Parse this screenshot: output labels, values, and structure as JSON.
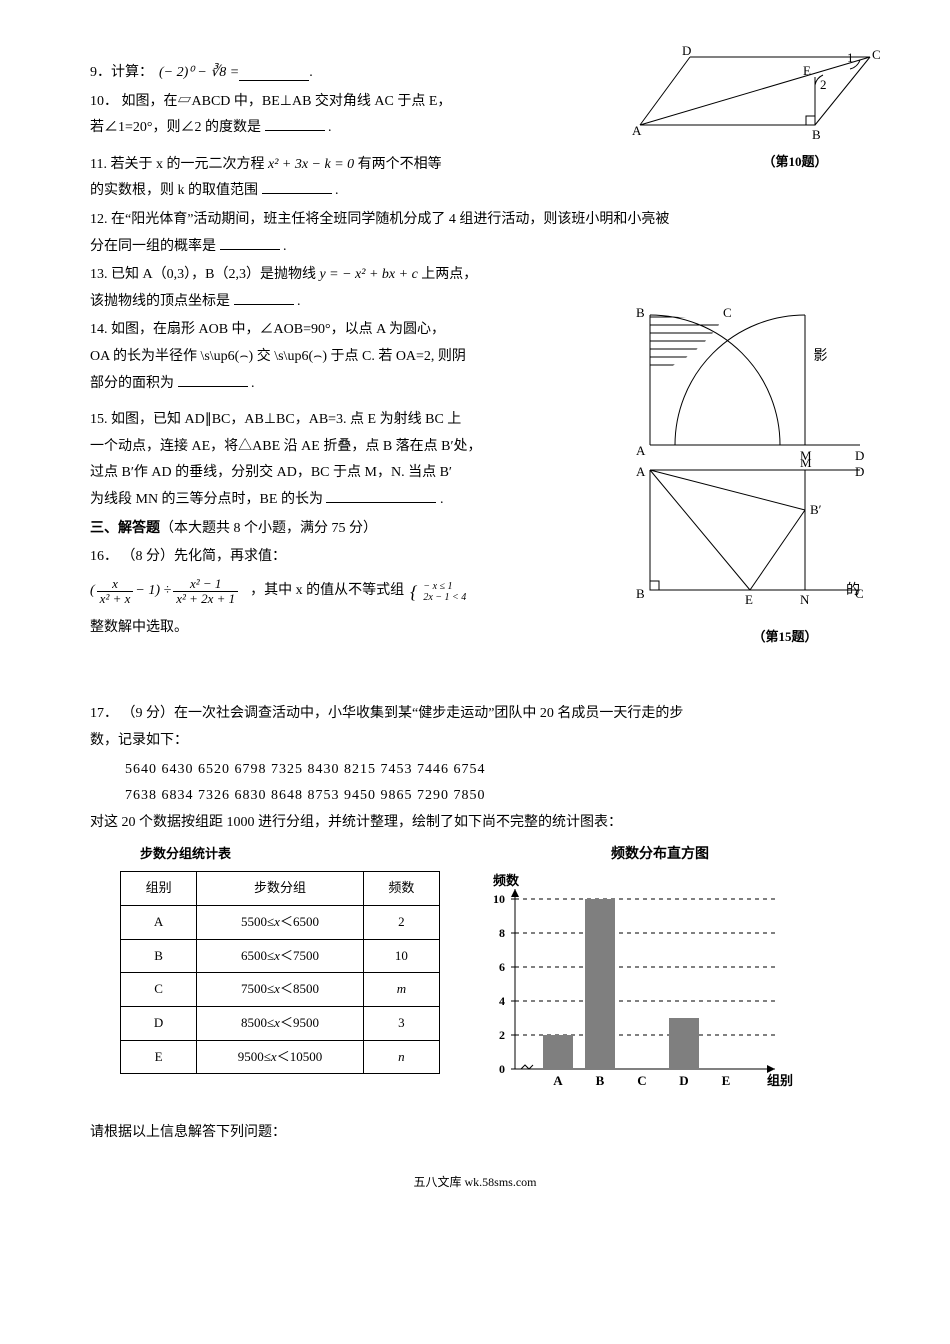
{
  "q9": {
    "num": "9．",
    "text_a": "计算：",
    "expr": "(− 2)⁰ − ∛8 =",
    "tail": "."
  },
  "q10": {
    "num": "10．",
    "l1": "如图，在▱ABCD 中，BE⊥AB 交对角线 AC 于点 E，",
    "l2": "若∠1=20°，则∠2 的度数是",
    "tail": "."
  },
  "fig10": {
    "caption": "（第10题）",
    "labels": {
      "A": "A",
      "B": "B",
      "C": "C",
      "D": "D",
      "E": "E",
      "ang1": "1",
      "ang2": "2"
    }
  },
  "q11": {
    "num": "11.",
    "l1a": "若关于 x 的一元二次方程",
    "expr": " x² + 3x − k = 0",
    "l1b": "有两个不相等",
    "l2a": "的实数根，则 k 的取值范围",
    "tail": "."
  },
  "q12": {
    "num": "12.",
    "l1": "在“阳光体育”活动期间，班主任将全班同学随机分成了 4 组进行活动，则该班小明和小亮被",
    "l2": "分在同一组的概率是",
    "tail": "."
  },
  "q13": {
    "num": "13.",
    "l1a": "已知 A（0,3），B（2,3）是抛物线",
    "expr": " y = − x² + bx + c ",
    "l1b": "上两点，",
    "l2": "该抛物线的顶点坐标是",
    "tail": "."
  },
  "q14": {
    "num": "14.",
    "l1": "如图，在扇形 AOB 中，∠AOB=90°，以点 A 为圆心，",
    "l2a": "OA 的长为半径作 \\s\\up6(⌢) 交 \\s\\up6(⌢) 于点 C.  若 OA=2, 则阴",
    "l2b": "影",
    "l3": "部分的面积为",
    "tail": "."
  },
  "fig14": {
    "labels": {
      "A": "A",
      "B": "B",
      "C": "C",
      "M": "M",
      "D": "D"
    }
  },
  "q15": {
    "num": "15.",
    "l1": "如图，已知 AD∥BC，AB⊥BC，AB=3. 点 E 为射线 BC 上",
    "l2": "一个动点，连接 AE，将△ABE 沿 AE 折叠，点 B 落在点 B′处，",
    "l3": "过点 B′作 AD 的垂线，分别交 AD，BC 于点 M，N. 当点 B′",
    "l4": "为线段 MN 的三等分点时，BE 的长为",
    "tail": "."
  },
  "fig15": {
    "caption": "（第15题）",
    "labels": {
      "A": "A",
      "B": "B",
      "C": "C",
      "D": "D",
      "M": "M",
      "N": "N",
      "E": "E",
      "Bp": "B′"
    }
  },
  "sec3": "三、解答题（本大题共 8 个小题，满分 75 分）",
  "q16": {
    "num": "16．",
    "l1": "（8 分）先化简，再求值：",
    "mid": "，其中 x 的值从不等式组",
    "sys1": "− x ≤ 1",
    "sys2": "2x − 1 < 4",
    "l2": "的",
    "l3": "整数解中选取。"
  },
  "q17": {
    "num": "17．",
    "l1": "（9 分）在一次社会调查活动中，小华收集到某“健步走运动”团队中 20 名成员一天行走的步",
    "l2": "数，记录如下：",
    "data_row1": [
      "5640",
      "6430",
      "6520",
      "6798",
      "7325",
      "8430",
      "8215",
      "7453",
      "7446",
      "6754"
    ],
    "data_row2": [
      "7638",
      "6834",
      "7326",
      "6830",
      "8648",
      "8753",
      "9450",
      "9865",
      "7290",
      "7850"
    ],
    "l3": "对这 20 个数据按组距 1000 进行分组，并统计整理，绘制了如下尚不完整的统计图表：",
    "l4": "请根据以上信息解答下列问题："
  },
  "freq_table": {
    "title": "步数分组统计表",
    "headers": [
      "组别",
      "步数分组",
      "频数"
    ],
    "rows": [
      [
        "A",
        "5500≤x＜6500",
        "2"
      ],
      [
        "B",
        "6500≤x＜7500",
        "10"
      ],
      [
        "C",
        "7500≤x＜8500",
        "m"
      ],
      [
        "D",
        "8500≤x＜9500",
        "3"
      ],
      [
        "E",
        "9500≤x＜10500",
        "n"
      ]
    ],
    "col_widths": [
      "48px",
      "140px",
      "48px"
    ]
  },
  "histogram": {
    "title": "频数分布直方图",
    "ylabel": "频数",
    "xlabel": "组别",
    "categories": [
      "A",
      "B",
      "C",
      "D",
      "E"
    ],
    "values": [
      2,
      10,
      null,
      3,
      null
    ],
    "bar_color": "#7f7f7f",
    "yticks": [
      0,
      2,
      4,
      6,
      8,
      10
    ],
    "ymax": 10,
    "grid_color": "#000",
    "axis_color": "#000"
  },
  "footer": "五八文库 wk.58sms.com"
}
